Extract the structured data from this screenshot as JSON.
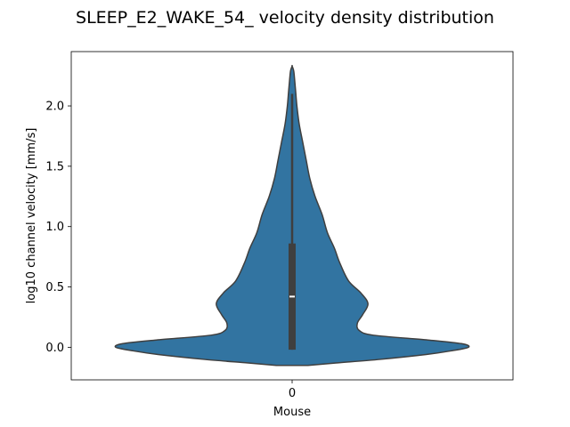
{
  "chart_data": {
    "type": "violin",
    "title": "SLEEP_E2_WAKE_54_ velocity density distribution",
    "xlabel": "Mouse",
    "ylabel": "log10 channel velocity [mm/s]",
    "categories": [
      "0"
    ],
    "ylim": [
      -0.27,
      2.45
    ],
    "yticks": [
      0.0,
      0.5,
      1.0,
      1.5,
      2.0
    ],
    "ytick_labels": [
      "0.0",
      "0.5",
      "1.0",
      "1.5",
      "2.0"
    ],
    "grid": false,
    "violin_color": "#3274a1",
    "edge_color": "#3f3f3f",
    "box": {
      "median": 0.42,
      "q1": -0.02,
      "q3": 0.86,
      "whisker_low": -0.02,
      "whisker_high": 2.1
    },
    "density_profile": [
      {
        "y": -0.15,
        "w": 0.09
      },
      {
        "y": -0.13,
        "w": 0.25
      },
      {
        "y": -0.1,
        "w": 0.5
      },
      {
        "y": -0.06,
        "w": 0.76
      },
      {
        "y": -0.03,
        "w": 0.9
      },
      {
        "y": 0.0,
        "w": 1.0
      },
      {
        "y": 0.03,
        "w": 0.96
      },
      {
        "y": 0.06,
        "w": 0.77
      },
      {
        "y": 0.1,
        "w": 0.46
      },
      {
        "y": 0.14,
        "w": 0.38
      },
      {
        "y": 0.2,
        "w": 0.37
      },
      {
        "y": 0.27,
        "w": 0.4
      },
      {
        "y": 0.36,
        "w": 0.43
      },
      {
        "y": 0.45,
        "w": 0.39
      },
      {
        "y": 0.55,
        "w": 0.32
      },
      {
        "y": 0.7,
        "w": 0.27
      },
      {
        "y": 0.82,
        "w": 0.24
      },
      {
        "y": 0.95,
        "w": 0.2
      },
      {
        "y": 1.1,
        "w": 0.17
      },
      {
        "y": 1.25,
        "w": 0.13
      },
      {
        "y": 1.4,
        "w": 0.1
      },
      {
        "y": 1.55,
        "w": 0.08
      },
      {
        "y": 1.7,
        "w": 0.06
      },
      {
        "y": 1.85,
        "w": 0.04
      },
      {
        "y": 2.0,
        "w": 0.027
      },
      {
        "y": 2.12,
        "w": 0.02
      },
      {
        "y": 2.22,
        "w": 0.014
      },
      {
        "y": 2.29,
        "w": 0.009
      },
      {
        "y": 2.33,
        "w": 0.0
      }
    ]
  }
}
